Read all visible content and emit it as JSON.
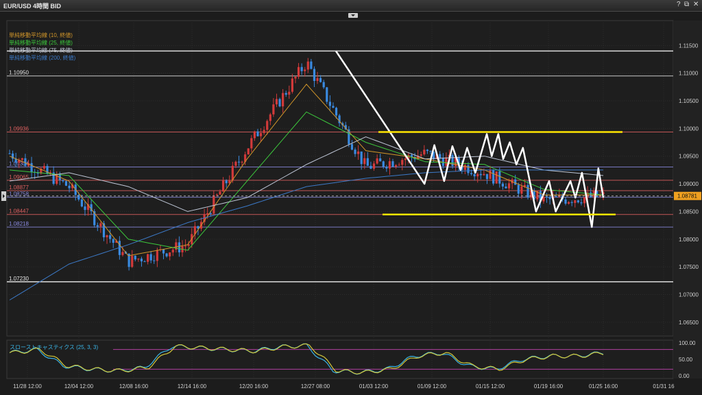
{
  "window": {
    "title": "EUR/USD 4時間 BID",
    "help_label": "?",
    "popout_label": "⧉",
    "close_label": "✕"
  },
  "main_legend": [
    {
      "label": "単純移動平均線 (10, 終値)",
      "color": "#d2962a"
    },
    {
      "label": "単純移動平均線 (25, 終値)",
      "color": "#3cc83c"
    },
    {
      "label": "単純移動平均線 (75, 終値)",
      "color": "#c0c8d8"
    },
    {
      "label": "単純移動平均線 (200, 終値)",
      "color": "#3c7ac8"
    }
  ],
  "price_axis": {
    "ticks": [
      "1.11500",
      "1.11000",
      "1.10500",
      "1.10000",
      "1.09500",
      "1.09000",
      "1.08500",
      "1.08000",
      "1.07500",
      "1.07000",
      "1.06500"
    ],
    "current_price": "1.08781"
  },
  "level_labels": [
    {
      "text": "1.10950",
      "color": "#e6e6e6"
    },
    {
      "text": "1.09936",
      "color": "#e06060"
    },
    {
      "text": "1.09304",
      "color": "#8a8ae0"
    },
    {
      "text": "1.09065",
      "color": "#e06060"
    },
    {
      "text": "1.08877",
      "color": "#e06060"
    },
    {
      "text": "1.08758",
      "color": "#8a8ae0"
    },
    {
      "text": "1.08447",
      "color": "#e06060"
    },
    {
      "text": "1.08218",
      "color": "#8a8ae0"
    },
    {
      "text": "1.07230",
      "color": "#e6e6e6"
    }
  ],
  "time_axis": [
    "11/28 12:00",
    "12/04 12:00",
    "12/08 16:00",
    "12/14 16:00",
    "12/20 16:00",
    "12/27 08:00",
    "01/03 12:00",
    "01/09 12:00",
    "01/15 12:00",
    "01/19 16:00",
    "01/25 16:00",
    "01/31 16"
  ],
  "oscillator": {
    "label": "スローストキャスティクス (25, 3, 3)",
    "ticks": [
      "100.00",
      "50.00",
      "0.00"
    ]
  },
  "chart_data": {
    "type": "line",
    "symbol": "EUR/USD",
    "ylim": [
      1.0625,
      1.1195
    ],
    "x": [
      "11/28 12:00",
      "12/04 12:00",
      "12/08 16:00",
      "12/14 16:00",
      "12/20 16:00",
      "12/27 08:00",
      "01/03 12:00",
      "01/09 12:00",
      "01/15 12:00",
      "01/19 16:00",
      "01/25 16:00"
    ],
    "series": [
      {
        "name": "close",
        "values": [
          1.0955,
          1.0895,
          1.076,
          1.079,
          1.0965,
          1.112,
          1.093,
          1.0955,
          1.092,
          1.087,
          1.0878
        ]
      },
      {
        "name": "単純移動平均線 (10, 終値)",
        "values": [
          1.095,
          1.0905,
          1.077,
          1.079,
          1.0945,
          1.108,
          1.096,
          1.0945,
          1.0925,
          1.088,
          1.088
        ]
      },
      {
        "name": "単純移動平均線 (25, 終値)",
        "values": [
          1.0925,
          1.0915,
          1.08,
          1.078,
          1.0905,
          1.103,
          1.0975,
          1.094,
          1.0935,
          1.089,
          1.088
        ]
      },
      {
        "name": "単純移動平均線 (75, 終値)",
        "values": [
          1.0905,
          1.092,
          1.0895,
          1.085,
          1.0875,
          1.0935,
          1.0985,
          1.0945,
          1.095,
          1.0925,
          1.0915
        ]
      },
      {
        "name": "単純移動平均線 (200, 終値)",
        "values": [
          1.069,
          1.0755,
          1.079,
          1.083,
          1.086,
          1.0895,
          1.091,
          1.092,
          1.0925,
          1.0925,
          1.0925
        ]
      }
    ],
    "horizontal_levels": [
      1.114,
      1.1095,
      1.09936,
      1.09304,
      1.09065,
      1.08877,
      1.08758,
      1.08447,
      1.08218,
      1.0723
    ],
    "drawn_zigzag": [
      [
        0,
        1.114
      ],
      [
        5.4,
        1.09
      ],
      [
        6.0,
        1.097
      ],
      [
        6.6,
        1.0905
      ],
      [
        7.1,
        1.0968
      ],
      [
        7.6,
        1.0925
      ],
      [
        8.0,
        1.0965
      ],
      [
        8.5,
        1.092
      ],
      [
        9.2,
        1.099
      ],
      [
        9.5,
        1.095
      ],
      [
        9.9,
        1.099
      ],
      [
        10.2,
        1.0945
      ],
      [
        10.6,
        1.0975
      ],
      [
        11.0,
        1.0935
      ],
      [
        11.4,
        1.0965
      ],
      [
        12.2,
        1.085
      ],
      [
        13.0,
        1.0905
      ],
      [
        13.4,
        1.085
      ],
      [
        14.3,
        1.0905
      ],
      [
        14.6,
        1.0875
      ],
      [
        15.0,
        1.092
      ],
      [
        15.6,
        1.0822
      ],
      [
        16.0,
        1.0928
      ],
      [
        16.3,
        1.0875
      ]
    ],
    "support_resistance": {
      "resistance": 1.09936,
      "support": 1.08447
    },
    "stochastic": {
      "ylim": [
        0,
        100
      ],
      "levels": [
        80,
        20
      ],
      "k": [
        70,
        80,
        30,
        20,
        15,
        25,
        90,
        85,
        80,
        75,
        88,
        92,
        15,
        10,
        20,
        60,
        70,
        30,
        20,
        50,
        60,
        60,
        70
      ]
    }
  }
}
